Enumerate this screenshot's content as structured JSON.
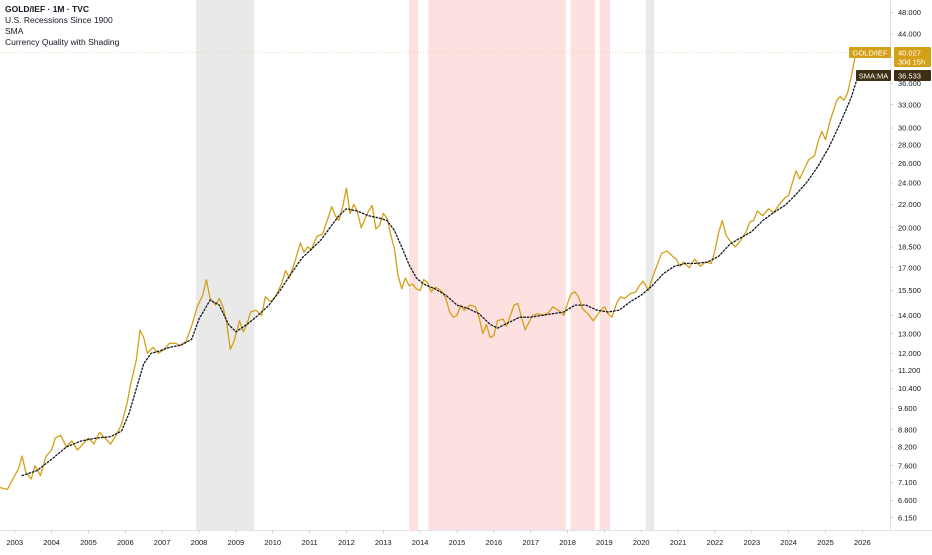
{
  "legend": {
    "symbol": "GOLD/IEF · 1M · TVC",
    "line2": "U.S. Recessions Since 1900",
    "line3": "SMA",
    "line4": "Currency Quality with Shading"
  },
  "labels": {
    "price_tag": "GOLD/IEF",
    "price_value": "40.027",
    "price_countdown": "30d 15h",
    "sma_tag": "SMA:MA",
    "sma_value": "36.533"
  },
  "colors": {
    "price_line": "#d4a017",
    "sma_line": "#131722",
    "recession_shade": "#e9e9e9",
    "quality_shade": "#fde0e0",
    "tag_gold": "#d4a017",
    "tag_dark": "#3d2f13"
  },
  "chart_data": {
    "type": "line",
    "scale": "log",
    "x_range": [
      2002.6,
      2026.75
    ],
    "y_range": [
      5.85,
      50.5
    ],
    "grid": false,
    "x_ticks": [
      "2003",
      "2004",
      "2005",
      "2006",
      "2007",
      "2008",
      "2009",
      "2010",
      "2011",
      "2012",
      "2013",
      "2014",
      "2015",
      "2016",
      "2017",
      "2018",
      "2019",
      "2020",
      "2021",
      "2022",
      "2023",
      "2024",
      "2025",
      "2026"
    ],
    "y_ticks": [
      "6.150",
      "6.600",
      "7.100",
      "7.600",
      "8.200",
      "8.800",
      "9.600",
      "10.400",
      "11.200",
      "12.000",
      "13.000",
      "14.000",
      "15.500",
      "17.000",
      "18.500",
      "20.000",
      "22.000",
      "24.000",
      "26.000",
      "28.000",
      "30.000",
      "33.000",
      "36.000",
      "40.000",
      "44.000",
      "48.000"
    ],
    "recession_shading": [
      [
        2007.92,
        2009.5
      ],
      [
        2020.12,
        2020.35
      ]
    ],
    "quality_shading": [
      [
        2013.7,
        2013.95
      ],
      [
        2014.22,
        2017.95
      ],
      [
        2018.08,
        2018.75
      ],
      [
        2018.87,
        2019.15
      ]
    ],
    "series": [
      {
        "type": "price",
        "points": [
          [
            2002.6,
            6.95
          ],
          [
            2002.8,
            6.9
          ],
          [
            2002.95,
            7.2
          ],
          [
            2003.1,
            7.5
          ],
          [
            2003.2,
            7.9
          ],
          [
            2003.3,
            7.4
          ],
          [
            2003.45,
            7.2
          ],
          [
            2003.55,
            7.6
          ],
          [
            2003.7,
            7.3
          ],
          [
            2003.85,
            7.9
          ],
          [
            2004.0,
            8.1
          ],
          [
            2004.1,
            8.5
          ],
          [
            2004.25,
            8.6
          ],
          [
            2004.4,
            8.2
          ],
          [
            2004.55,
            8.4
          ],
          [
            2004.7,
            8.1
          ],
          [
            2004.85,
            8.3
          ],
          [
            2005.0,
            8.5
          ],
          [
            2005.15,
            8.3
          ],
          [
            2005.3,
            8.7
          ],
          [
            2005.45,
            8.5
          ],
          [
            2005.6,
            8.3
          ],
          [
            2005.75,
            8.6
          ],
          [
            2005.9,
            9.0
          ],
          [
            2006.05,
            9.8
          ],
          [
            2006.15,
            10.6
          ],
          [
            2006.3,
            11.7
          ],
          [
            2006.4,
            13.2
          ],
          [
            2006.5,
            12.8
          ],
          [
            2006.6,
            12.0
          ],
          [
            2006.75,
            12.3
          ],
          [
            2006.9,
            12.0
          ],
          [
            2007.05,
            12.2
          ],
          [
            2007.2,
            12.5
          ],
          [
            2007.35,
            12.5
          ],
          [
            2007.5,
            12.4
          ],
          [
            2007.65,
            12.6
          ],
          [
            2007.8,
            13.4
          ],
          [
            2007.95,
            14.5
          ],
          [
            2008.1,
            15.2
          ],
          [
            2008.2,
            16.2
          ],
          [
            2008.3,
            15.0
          ],
          [
            2008.45,
            14.6
          ],
          [
            2008.55,
            15.0
          ],
          [
            2008.65,
            14.5
          ],
          [
            2008.75,
            13.6
          ],
          [
            2008.85,
            12.2
          ],
          [
            2008.95,
            12.6
          ],
          [
            2009.1,
            13.7
          ],
          [
            2009.2,
            13.1
          ],
          [
            2009.3,
            13.5
          ],
          [
            2009.4,
            14.2
          ],
          [
            2009.55,
            14.3
          ],
          [
            2009.7,
            14.0
          ],
          [
            2009.8,
            15.1
          ],
          [
            2009.95,
            14.8
          ],
          [
            2010.1,
            15.2
          ],
          [
            2010.25,
            16.0
          ],
          [
            2010.35,
            16.8
          ],
          [
            2010.45,
            16.3
          ],
          [
            2010.6,
            17.4
          ],
          [
            2010.75,
            18.8
          ],
          [
            2010.85,
            18.1
          ],
          [
            2010.95,
            18.5
          ],
          [
            2011.05,
            18.3
          ],
          [
            2011.2,
            19.3
          ],
          [
            2011.35,
            19.5
          ],
          [
            2011.5,
            20.8
          ],
          [
            2011.6,
            21.8
          ],
          [
            2011.7,
            21.0
          ],
          [
            2011.8,
            20.6
          ],
          [
            2011.9,
            21.8
          ],
          [
            2012.0,
            23.5
          ],
          [
            2012.1,
            21.2
          ],
          [
            2012.2,
            22.0
          ],
          [
            2012.3,
            21.3
          ],
          [
            2012.4,
            20.0
          ],
          [
            2012.5,
            20.7
          ],
          [
            2012.6,
            21.4
          ],
          [
            2012.7,
            21.9
          ],
          [
            2012.8,
            19.9
          ],
          [
            2012.9,
            20.2
          ],
          [
            2013.0,
            21.2
          ],
          [
            2013.1,
            20.8
          ],
          [
            2013.2,
            19.5
          ],
          [
            2013.3,
            18.4
          ],
          [
            2013.4,
            16.5
          ],
          [
            2013.5,
            15.6
          ],
          [
            2013.6,
            16.3
          ],
          [
            2013.7,
            15.8
          ],
          [
            2013.8,
            15.9
          ],
          [
            2013.9,
            15.6
          ],
          [
            2014.0,
            15.5
          ],
          [
            2014.1,
            16.2
          ],
          [
            2014.2,
            16.0
          ],
          [
            2014.3,
            15.4
          ],
          [
            2014.4,
            15.7
          ],
          [
            2014.5,
            15.6
          ],
          [
            2014.6,
            15.4
          ],
          [
            2014.7,
            15.0
          ],
          [
            2014.8,
            14.2
          ],
          [
            2014.9,
            13.9
          ],
          [
            2015.0,
            14.0
          ],
          [
            2015.1,
            14.6
          ],
          [
            2015.2,
            14.3
          ],
          [
            2015.35,
            14.6
          ],
          [
            2015.5,
            14.5
          ],
          [
            2015.6,
            13.9
          ],
          [
            2015.7,
            13.0
          ],
          [
            2015.8,
            13.5
          ],
          [
            2015.9,
            12.8
          ],
          [
            2016.0,
            12.9
          ],
          [
            2016.1,
            13.7
          ],
          [
            2016.25,
            13.8
          ],
          [
            2016.35,
            13.4
          ],
          [
            2016.45,
            14.0
          ],
          [
            2016.55,
            14.6
          ],
          [
            2016.65,
            14.7
          ],
          [
            2016.75,
            13.9
          ],
          [
            2016.85,
            13.2
          ],
          [
            2016.95,
            13.6
          ],
          [
            2017.05,
            14.0
          ],
          [
            2017.2,
            14.1
          ],
          [
            2017.35,
            14.0
          ],
          [
            2017.5,
            14.2
          ],
          [
            2017.6,
            14.5
          ],
          [
            2017.75,
            14.3
          ],
          [
            2017.9,
            14.0
          ],
          [
            2018.0,
            14.7
          ],
          [
            2018.1,
            15.3
          ],
          [
            2018.2,
            15.4
          ],
          [
            2018.3,
            15.1
          ],
          [
            2018.4,
            14.4
          ],
          [
            2018.55,
            14.1
          ],
          [
            2018.7,
            13.7
          ],
          [
            2018.8,
            14.0
          ],
          [
            2018.9,
            14.3
          ],
          [
            2019.0,
            14.5
          ],
          [
            2019.1,
            14.1
          ],
          [
            2019.2,
            13.9
          ],
          [
            2019.35,
            14.8
          ],
          [
            2019.45,
            15.1
          ],
          [
            2019.55,
            15.0
          ],
          [
            2019.7,
            15.3
          ],
          [
            2019.85,
            15.4
          ],
          [
            2019.95,
            15.8
          ],
          [
            2020.05,
            16.1
          ],
          [
            2020.2,
            15.5
          ],
          [
            2020.3,
            16.3
          ],
          [
            2020.45,
            17.3
          ],
          [
            2020.55,
            18.0
          ],
          [
            2020.7,
            18.2
          ],
          [
            2020.85,
            17.8
          ],
          [
            2020.95,
            17.6
          ],
          [
            2021.05,
            17.1
          ],
          [
            2021.15,
            17.4
          ],
          [
            2021.3,
            17.0
          ],
          [
            2021.45,
            17.6
          ],
          [
            2021.6,
            17.1
          ],
          [
            2021.75,
            17.4
          ],
          [
            2021.9,
            17.3
          ],
          [
            2022.0,
            18.2
          ],
          [
            2022.1,
            19.6
          ],
          [
            2022.2,
            20.6
          ],
          [
            2022.3,
            19.4
          ],
          [
            2022.45,
            18.8
          ],
          [
            2022.55,
            18.5
          ],
          [
            2022.7,
            19.0
          ],
          [
            2022.85,
            19.7
          ],
          [
            2022.95,
            20.5
          ],
          [
            2023.05,
            20.6
          ],
          [
            2023.15,
            21.4
          ],
          [
            2023.3,
            21.0
          ],
          [
            2023.45,
            21.6
          ],
          [
            2023.6,
            21.3
          ],
          [
            2023.75,
            22.0
          ],
          [
            2023.9,
            22.6
          ],
          [
            2024.0,
            22.8
          ],
          [
            2024.1,
            24.0
          ],
          [
            2024.2,
            25.2
          ],
          [
            2024.3,
            24.4
          ],
          [
            2024.45,
            25.6
          ],
          [
            2024.55,
            26.4
          ],
          [
            2024.7,
            26.8
          ],
          [
            2024.8,
            28.4
          ],
          [
            2024.9,
            29.6
          ],
          [
            2025.0,
            28.6
          ],
          [
            2025.1,
            30.5
          ],
          [
            2025.2,
            32.0
          ],
          [
            2025.3,
            33.5
          ],
          [
            2025.4,
            34.1
          ],
          [
            2025.5,
            33.6
          ],
          [
            2025.6,
            34.6
          ],
          [
            2025.7,
            37.0
          ],
          [
            2025.8,
            40.0
          ]
        ]
      },
      {
        "type": "sma",
        "points": [
          [
            2003.2,
            7.3
          ],
          [
            2003.6,
            7.45
          ],
          [
            2004.0,
            7.8
          ],
          [
            2004.4,
            8.2
          ],
          [
            2004.8,
            8.4
          ],
          [
            2005.2,
            8.5
          ],
          [
            2005.6,
            8.55
          ],
          [
            2005.9,
            8.75
          ],
          [
            2006.1,
            9.4
          ],
          [
            2006.3,
            10.4
          ],
          [
            2006.5,
            11.5
          ],
          [
            2006.7,
            12.0
          ],
          [
            2006.9,
            12.1
          ],
          [
            2007.2,
            12.3
          ],
          [
            2007.5,
            12.4
          ],
          [
            2007.8,
            12.7
          ],
          [
            2008.0,
            13.8
          ],
          [
            2008.3,
            14.9
          ],
          [
            2008.55,
            14.6
          ],
          [
            2008.8,
            13.5
          ],
          [
            2009.0,
            13.1
          ],
          [
            2009.3,
            13.5
          ],
          [
            2009.6,
            14.0
          ],
          [
            2009.9,
            14.6
          ],
          [
            2010.2,
            15.5
          ],
          [
            2010.5,
            16.6
          ],
          [
            2010.8,
            17.7
          ],
          [
            2011.0,
            18.2
          ],
          [
            2011.3,
            19.0
          ],
          [
            2011.6,
            20.2
          ],
          [
            2011.8,
            21.0
          ],
          [
            2012.0,
            21.6
          ],
          [
            2012.3,
            21.4
          ],
          [
            2012.6,
            21.0
          ],
          [
            2012.9,
            20.8
          ],
          [
            2013.1,
            20.6
          ],
          [
            2013.3,
            19.8
          ],
          [
            2013.5,
            18.5
          ],
          [
            2013.7,
            17.2
          ],
          [
            2013.9,
            16.3
          ],
          [
            2014.1,
            15.9
          ],
          [
            2014.4,
            15.6
          ],
          [
            2014.7,
            15.2
          ],
          [
            2015.0,
            14.6
          ],
          [
            2015.3,
            14.4
          ],
          [
            2015.6,
            14.1
          ],
          [
            2015.9,
            13.5
          ],
          [
            2016.1,
            13.3
          ],
          [
            2016.4,
            13.6
          ],
          [
            2016.7,
            13.9
          ],
          [
            2017.0,
            13.9
          ],
          [
            2017.3,
            14.0
          ],
          [
            2017.6,
            14.1
          ],
          [
            2017.9,
            14.2
          ],
          [
            2018.2,
            14.6
          ],
          [
            2018.5,
            14.6
          ],
          [
            2018.8,
            14.3
          ],
          [
            2019.1,
            14.2
          ],
          [
            2019.4,
            14.3
          ],
          [
            2019.7,
            14.8
          ],
          [
            2020.0,
            15.2
          ],
          [
            2020.3,
            15.8
          ],
          [
            2020.6,
            16.6
          ],
          [
            2020.9,
            17.1
          ],
          [
            2021.2,
            17.3
          ],
          [
            2021.5,
            17.3
          ],
          [
            2021.8,
            17.4
          ],
          [
            2022.1,
            17.8
          ],
          [
            2022.4,
            18.7
          ],
          [
            2022.7,
            19.2
          ],
          [
            2023.0,
            19.7
          ],
          [
            2023.3,
            20.6
          ],
          [
            2023.6,
            21.3
          ],
          [
            2023.9,
            21.9
          ],
          [
            2024.2,
            22.9
          ],
          [
            2024.5,
            24.1
          ],
          [
            2024.8,
            25.7
          ],
          [
            2025.1,
            27.8
          ],
          [
            2025.4,
            30.6
          ],
          [
            2025.7,
            34.0
          ],
          [
            2025.85,
            36.5
          ]
        ]
      }
    ]
  }
}
